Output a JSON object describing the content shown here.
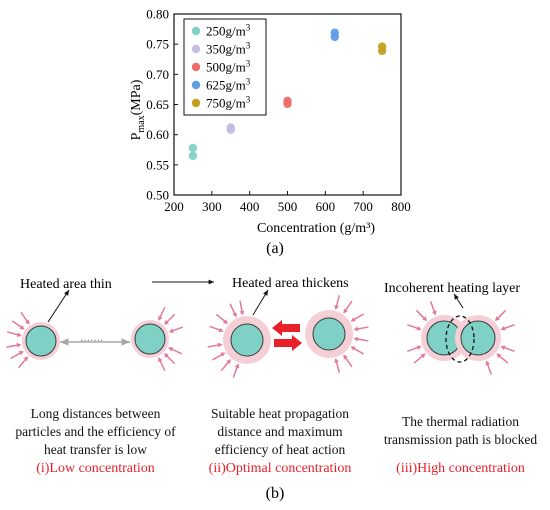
{
  "colors": {
    "particle_fill": "#7fd1c6",
    "particle_stroke": "#3b3b3b",
    "halo": "#f5cfd6",
    "ray": "#e4789a",
    "accent_red": "#e8202a",
    "gray_arrow": "#a7a7a7"
  },
  "chart_data": {
    "type": "scatter",
    "xlabel": "Concentration (g/m³)",
    "ylabel_main": "P",
    "ylabel_sub": "max",
    "ylabel_unit": "(MPa)",
    "xlim": [
      200,
      800
    ],
    "ylim": [
      0.5,
      0.8
    ],
    "x_ticks": [
      "200",
      "300",
      "400",
      "500",
      "600",
      "700",
      "800"
    ],
    "y_ticks": [
      "0.50",
      "0.55",
      "0.60",
      "0.65",
      "0.70",
      "0.75",
      "0.80"
    ],
    "grid": false,
    "legend_position": "top-left",
    "series": [
      {
        "name": "250g/m",
        "sup": "3",
        "color": "#7fd1c6",
        "x": [
          250,
          250
        ],
        "y": [
          0.578,
          0.565
        ]
      },
      {
        "name": "350g/m",
        "sup": "3",
        "color": "#c6bde2",
        "x": [
          350,
          350
        ],
        "y": [
          0.612,
          0.608
        ]
      },
      {
        "name": "500g/m",
        "sup": "3",
        "color": "#ee6b6b",
        "x": [
          500,
          500
        ],
        "y": [
          0.656,
          0.651
        ]
      },
      {
        "name": "625g/m",
        "sup": "3",
        "color": "#5f9ce6",
        "x": [
          625,
          625
        ],
        "y": [
          0.769,
          0.762
        ]
      },
      {
        "name": "750g/m",
        "sup": "3",
        "color": "#c4a020",
        "x": [
          750,
          750
        ],
        "y": [
          0.746,
          0.739
        ]
      }
    ]
  },
  "labels": {
    "sub_a": "(a)",
    "sub_b": "(b)",
    "heated_thin": "Heated area thin",
    "heated_thickens": "Heated area thickens",
    "incoherent": "Incoherent heating layer",
    "dots": "·······"
  },
  "panels": [
    {
      "caption": "Long distances between particles and the efficiency of heat transfer is low",
      "concentration": "(i)Low concentration"
    },
    {
      "caption": "Suitable heat propagation distance and  maximum efficiency of heat action",
      "concentration": "(ii)Optimal concentration"
    },
    {
      "caption": "The thermal radiation transmission path is blocked",
      "concentration": "(iii)High concentration"
    }
  ]
}
